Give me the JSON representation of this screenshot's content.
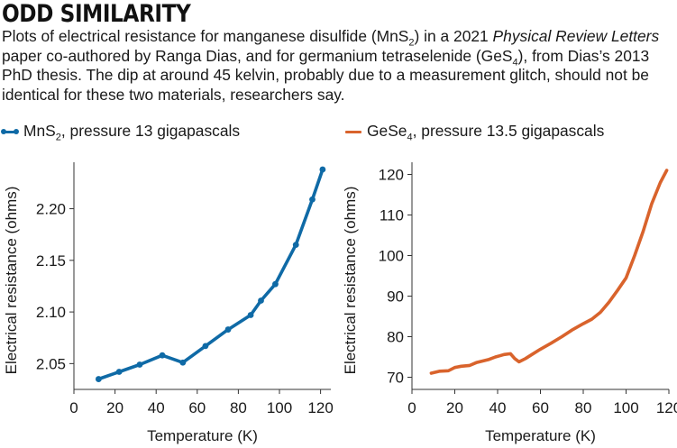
{
  "header": {
    "title": "ODD SIMILARITY",
    "subtitle_parts": [
      {
        "text": "Plots of electrical resistance for manganese disulfide (MnS",
        "style": "normal"
      },
      {
        "text": "2",
        "style": "sub"
      },
      {
        "text": ") in a 2021 ",
        "style": "normal"
      },
      {
        "text": "Physical Review Letters",
        "style": "italic"
      },
      {
        "text": " paper co-authored by Ranga Dias, and for germanium tetraselenide (GeS",
        "style": "normal"
      },
      {
        "text": "4",
        "style": "sub"
      },
      {
        "text": "), from Dias’s 2013 PhD thesis. The dip at around 45 kelvin, probably due to a measurement glitch, should not be identical for these two materials, researchers say.",
        "style": "normal"
      }
    ]
  },
  "legend": {
    "left": {
      "prefix": "MnS",
      "sub": "2",
      "suffix": ", pressure 13 gigapascals",
      "color": "#0f6aa6",
      "marker": "line-with-dots"
    },
    "right": {
      "prefix": "GeSe",
      "sub": "4",
      "suffix": ", pressure 13.5 gigapascals",
      "color": "#d9632c",
      "marker": "line"
    }
  },
  "chart_data": [
    {
      "type": "line",
      "series": [
        {
          "color": "#0f6aa6",
          "markers": true,
          "x": [
            12,
            22,
            32,
            43,
            53,
            64,
            75,
            86,
            91,
            98,
            108,
            116,
            121
          ],
          "y": [
            2.035,
            2.042,
            2.049,
            2.058,
            2.051,
            2.067,
            2.083,
            2.097,
            2.111,
            2.127,
            2.165,
            2.209,
            2.238
          ]
        }
      ],
      "xlabel": "Temperature (K)",
      "ylabel": "Electrical resistance (ohms)",
      "xlim": [
        0,
        125
      ],
      "ylim": [
        2.025,
        2.245
      ],
      "xticks": [
        0,
        20,
        40,
        60,
        80,
        100,
        120
      ],
      "xtick_labels": [
        "0",
        "20",
        "40",
        "60",
        "80",
        "100",
        "120"
      ],
      "yticks": [
        2.05,
        2.1,
        2.15,
        2.2
      ],
      "ytick_labels": [
        "2.05",
        "2.10",
        "2.15",
        "2.20"
      ],
      "grid": false
    },
    {
      "type": "line",
      "series": [
        {
          "color": "#d9632c",
          "markers": false,
          "x": [
            9,
            13,
            17,
            20,
            23,
            27,
            30,
            33,
            36,
            39,
            41,
            43,
            46,
            48,
            50,
            53,
            56,
            60,
            65,
            70,
            75,
            80,
            84,
            88,
            92,
            96,
            100,
            104,
            108,
            112,
            116,
            119
          ],
          "y": [
            71.0,
            71.5,
            71.6,
            72.4,
            72.7,
            72.9,
            73.6,
            74.0,
            74.4,
            75.0,
            75.3,
            75.6,
            75.8,
            74.6,
            73.8,
            74.6,
            75.6,
            76.9,
            78.4,
            80.0,
            81.7,
            83.2,
            84.3,
            86.0,
            88.5,
            91.4,
            94.5,
            100.0,
            106.0,
            112.8,
            118.0,
            121.0
          ]
        }
      ],
      "xlabel": "Temperature (K)",
      "ylabel": "Electrical resistance (ohms)",
      "xlim": [
        0,
        120
      ],
      "ylim": [
        67,
        123
      ],
      "xticks": [
        0,
        20,
        40,
        60,
        80,
        100,
        120
      ],
      "xtick_labels": [
        "0",
        "20",
        "40",
        "60",
        "80",
        "100",
        "120"
      ],
      "yticks": [
        70,
        80,
        90,
        100,
        110,
        120
      ],
      "ytick_labels": [
        "70",
        "80",
        "90",
        "100",
        "110",
        "120"
      ],
      "grid": false
    }
  ]
}
